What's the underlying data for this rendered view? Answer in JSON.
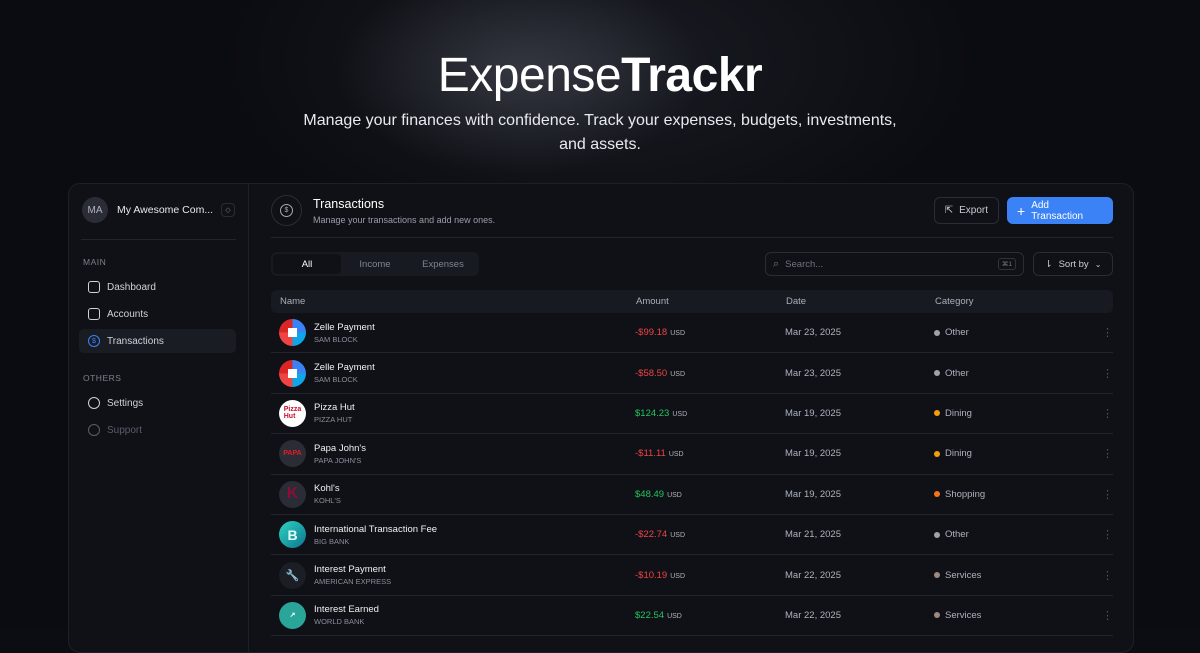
{
  "hero": {
    "brand_light": "Expense",
    "brand_bold": "Trackr",
    "subtitle": "Manage your finances with confidence. Track your expenses, budgets, investments, and assets."
  },
  "sidebar": {
    "org_initials": "MA",
    "org_name": "My Awesome Com...",
    "main_label": "MAIN",
    "others_label": "OTHERS",
    "main_items": [
      {
        "label": "Dashboard",
        "icon": "dashboard-icon"
      },
      {
        "label": "Accounts",
        "icon": "wallet-icon"
      },
      {
        "label": "Transactions",
        "icon": "dollar-circle-icon",
        "active": true
      }
    ],
    "other_items": [
      {
        "label": "Settings",
        "icon": "gear-icon"
      },
      {
        "label": "Support",
        "icon": "headset-icon",
        "disabled": true
      }
    ]
  },
  "header": {
    "title": "Transactions",
    "subtitle": "Manage your transactions and add new ones.",
    "export_label": "Export",
    "add_label": "Add Transaction"
  },
  "filters": {
    "tabs": [
      "All",
      "Income",
      "Expenses"
    ],
    "active_tab": "All",
    "search_placeholder": "Search...",
    "search_shortcut": "⌘1",
    "sort_label": "Sort by"
  },
  "table": {
    "columns": [
      "Name",
      "Amount",
      "Date",
      "Category"
    ],
    "rows": [
      {
        "name": "Zelle Payment",
        "sub": "SAM BLOCK",
        "amount": "-$99.18",
        "currency": "USD",
        "date": "Mar 23, 2025",
        "category": "Other",
        "cat_color": "#a1a1aa",
        "type": "neg",
        "logo": "zelle"
      },
      {
        "name": "Zelle Payment",
        "sub": "SAM BLOCK",
        "amount": "-$58.50",
        "currency": "USD",
        "date": "Mar 23, 2025",
        "category": "Other",
        "cat_color": "#a1a1aa",
        "type": "neg",
        "logo": "zelle"
      },
      {
        "name": "Pizza Hut",
        "sub": "PIZZA HUT",
        "amount": "$124.23",
        "currency": "USD",
        "date": "Mar 19, 2025",
        "category": "Dining",
        "cat_color": "#f59e0b",
        "type": "pos",
        "logo": "pizzahut"
      },
      {
        "name": "Papa John's",
        "sub": "PAPA JOHN'S",
        "amount": "-$11.11",
        "currency": "USD",
        "date": "Mar 19, 2025",
        "category": "Dining",
        "cat_color": "#f59e0b",
        "type": "neg",
        "logo": "papajohns"
      },
      {
        "name": "Kohl's",
        "sub": "KOHL'S",
        "amount": "$48.49",
        "currency": "USD",
        "date": "Mar 19, 2025",
        "category": "Shopping",
        "cat_color": "#f97316",
        "type": "pos",
        "logo": "kohls"
      },
      {
        "name": "International Transaction Fee",
        "sub": "BIG BANK",
        "amount": "-$22.74",
        "currency": "USD",
        "date": "Mar 21, 2025",
        "category": "Other",
        "cat_color": "#a1a1aa",
        "type": "neg",
        "logo": "bigbank"
      },
      {
        "name": "Interest Payment",
        "sub": "AMERICAN EXPRESS",
        "amount": "-$10.19",
        "currency": "USD",
        "date": "Mar 22, 2025",
        "category": "Services",
        "cat_color": "#a1887f",
        "type": "neg",
        "logo": "wrench"
      },
      {
        "name": "Interest Earned",
        "sub": "WORLD BANK",
        "amount": "$22.54",
        "currency": "USD",
        "date": "Mar 22, 2025",
        "category": "Services",
        "cat_color": "#a1887f",
        "type": "pos",
        "logo": "worldbank"
      }
    ]
  }
}
